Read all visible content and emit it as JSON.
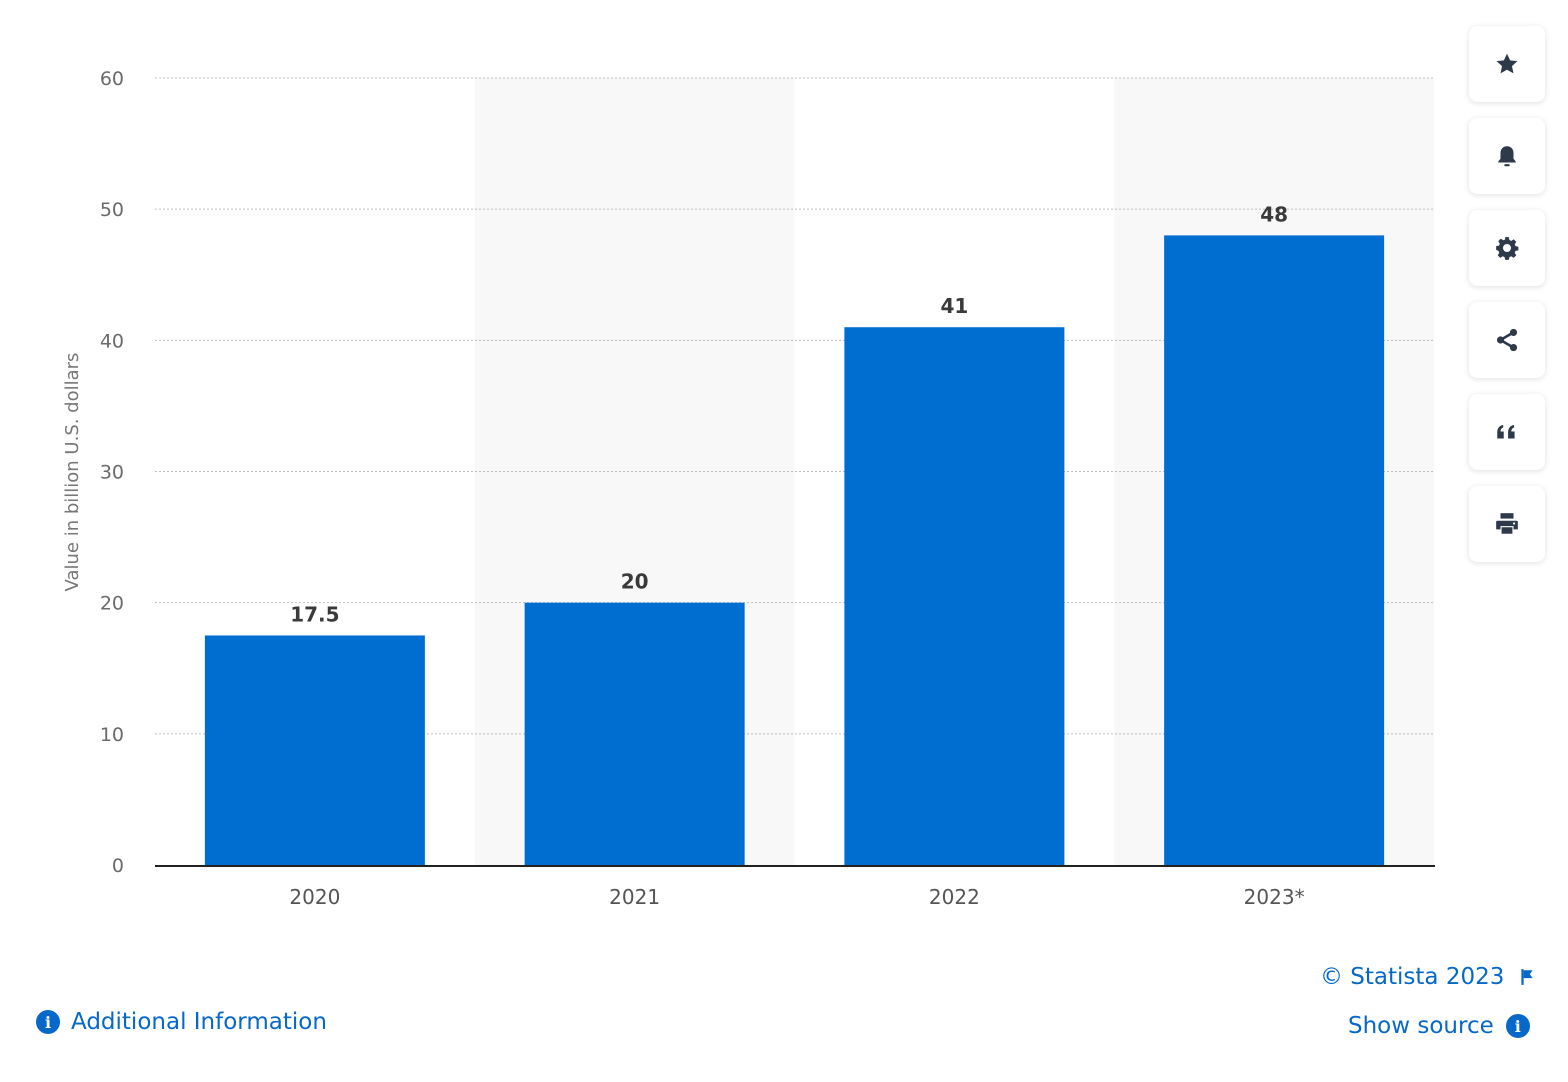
{
  "chart_data": {
    "type": "bar",
    "categories": [
      "2020",
      "2021",
      "2022",
      "2023*"
    ],
    "values": [
      17.5,
      20,
      41,
      48
    ],
    "data_labels": [
      "17.5",
      "20",
      "41",
      "48"
    ],
    "ylabel": "Value in billion U.S. dollars",
    "xlabel": "",
    "ylim": [
      0,
      60
    ],
    "yticks": [
      0,
      10,
      20,
      30,
      40,
      50,
      60
    ],
    "grid": true,
    "bar_color": "#006dd0",
    "band_color": "#f8f8f8"
  },
  "toolbar": {
    "buttons": [
      {
        "name": "favorite",
        "icon": "star-icon"
      },
      {
        "name": "notify",
        "icon": "bell-icon"
      },
      {
        "name": "settings",
        "icon": "gear-icon"
      },
      {
        "name": "share",
        "icon": "share-icon"
      },
      {
        "name": "cite",
        "icon": "quote-icon"
      },
      {
        "name": "print",
        "icon": "printer-icon"
      }
    ]
  },
  "footer": {
    "copyright": "© Statista 2023",
    "show_source": "Show source",
    "additional_info": "Additional Information",
    "link_color": "#0668c9"
  }
}
